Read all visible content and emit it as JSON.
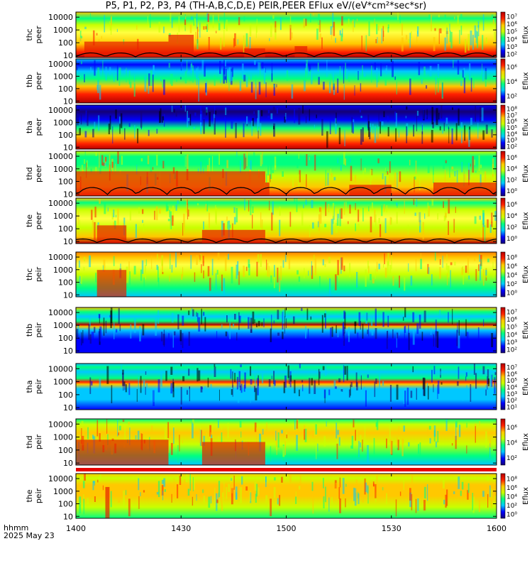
{
  "title": "P5, P1, P2, P3, P4 (TH-A,B,C,D,E) PEIR,PEER EFlux eV/(eV*cm²*sec*sr)",
  "footer": {
    "hhmm": "hhmm",
    "date": "2025 May 23"
  },
  "chart_data": {
    "type": "heatmap",
    "x_ticks": [
      "1400",
      "1430",
      "1500",
      "1530",
      "1600"
    ],
    "x_range": [
      "14:00",
      "16:00"
    ],
    "y_scale": "log",
    "y_range_eV": [
      7,
      25000
    ],
    "y_ticks": [
      "10",
      "100",
      "1000",
      "10000"
    ],
    "colorscale": [
      "#140078",
      "#0000ff",
      "#00c8ff",
      "#00ff80",
      "#c8ff00",
      "#ffc800",
      "#ff2000",
      "#b40000"
    ],
    "panels": [
      {
        "station": "thc",
        "product": "peer",
        "ylabel": "thc peer",
        "cb_label": "Eflux",
        "cb_ticks": [
          "10²",
          "10³",
          "10⁴",
          "10⁵",
          "10⁶",
          "10⁷"
        ]
      },
      {
        "station": "thb",
        "product": "peer",
        "ylabel": "thb peer",
        "cb_label": "Eflux",
        "cb_ticks": [
          "10²",
          "10⁴",
          "10⁶"
        ]
      },
      {
        "station": "tha",
        "product": "peer",
        "ylabel": "tha peer",
        "cb_label": "Eflux",
        "cb_ticks": [
          "10²",
          "10³",
          "10⁴",
          "10⁵",
          "10⁶",
          "10⁷",
          "10⁸"
        ]
      },
      {
        "station": "thd",
        "product": "peer",
        "ylabel": "thd peer",
        "cb_label": "Eflux",
        "cb_ticks": [
          "10⁰",
          "10²",
          "10⁴",
          "10⁶"
        ]
      },
      {
        "station": "the",
        "product": "peer",
        "ylabel": "the peer",
        "cb_label": "Eflux",
        "cb_ticks": [
          "10⁰",
          "10²",
          "10⁴",
          "10⁶"
        ]
      },
      {
        "station": "thc",
        "product": "peir",
        "ylabel": "thc peir",
        "cb_label": "Eflux",
        "cb_ticks": [
          "10⁰",
          "10²",
          "10⁴",
          "10⁶",
          "10⁸"
        ]
      },
      {
        "station": "thb",
        "product": "peir",
        "ylabel": "thb peir",
        "cb_label": "Eflux",
        "cb_ticks": [
          "10²",
          "10³",
          "10⁴",
          "10⁵",
          "10⁶",
          "10⁷"
        ]
      },
      {
        "station": "tha",
        "product": "peir",
        "ylabel": "tha peir",
        "cb_label": "Eflux",
        "cb_ticks": [
          "10¹",
          "10²",
          "10³",
          "10⁴",
          "10⁵",
          "10⁶",
          "10⁷"
        ]
      },
      {
        "station": "thd",
        "product": "peir",
        "ylabel": "thd peir",
        "cb_label": "Eflux",
        "cb_ticks": [
          "10²",
          "10⁴",
          "10⁶"
        ]
      },
      {
        "station": "the",
        "product": "peir",
        "ylabel": "the peir",
        "cb_label": "Eflux",
        "cb_ticks": [
          "10⁰",
          "10²",
          "10⁴",
          "10⁶",
          "10⁸"
        ]
      }
    ]
  }
}
